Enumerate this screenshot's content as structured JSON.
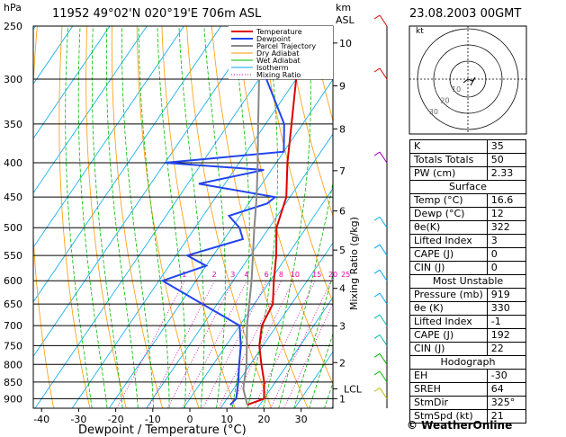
{
  "header": {
    "pressure_unit": "hPa",
    "station": "11952  49°02'N  020°19'E  706m  ASL",
    "height_unit": "km",
    "height_ref": "ASL",
    "datetime": "23.08.2003  00GMT"
  },
  "legend": [
    "Temperature",
    "Dewpoint",
    "Parcel Trajectory",
    "Dry Adiabat",
    "Wet Adiabat",
    "Isotherm",
    "Mixing Ratio"
  ],
  "colors": {
    "temperature": "#dd0000",
    "dewpoint": "#2244ee",
    "parcel": "#888888",
    "dry_adiabat": "#ff9900",
    "wet_adiabat": "#00bb00",
    "isotherm": "#00aaee",
    "mixing_ratio": "#dd00aa"
  },
  "chart_data": {
    "type": "line",
    "title": "11952  49°02'N  020°19'E  706m  ASL",
    "xlabel": "Dewpoint / Temperature (°C)",
    "ylabel": "hPa",
    "xlim": [
      -40,
      38
    ],
    "x_ticks": [
      "-40",
      "-30",
      "-20",
      "-10",
      "0",
      "10",
      "20",
      "30"
    ],
    "pressure_levels": [
      250,
      300,
      350,
      400,
      450,
      500,
      550,
      600,
      650,
      700,
      750,
      800,
      850,
      900
    ],
    "y_tick_labels": [
      "250",
      "300",
      "350",
      "400",
      "450",
      "500",
      "550",
      "600",
      "650",
      "700",
      "750",
      "800",
      "850",
      "900"
    ],
    "height_km_labels": [
      {
        "label": "10",
        "p": 265
      },
      {
        "label": "9",
        "p": 307
      },
      {
        "label": "8",
        "p": 356
      },
      {
        "label": "7",
        "p": 411
      },
      {
        "label": "6",
        "p": 472
      },
      {
        "label": "5",
        "p": 540
      },
      {
        "label": "4",
        "p": 616
      },
      {
        "label": "3",
        "p": 701
      },
      {
        "label": "2",
        "p": 795
      },
      {
        "label": "LCL",
        "p": 870
      },
      {
        "label": "1",
        "p": 900
      }
    ],
    "mixing_ratio_axis_label": "Mixing Ratio (g/kg)",
    "mixing_ratio_labels": [
      "1",
      "2",
      "3",
      "4",
      "6",
      "8",
      "10",
      "15",
      "20",
      "25"
    ],
    "series": [
      {
        "name": "Temperature",
        "points": [
          [
            919,
            16.6
          ],
          [
            900,
            20
          ],
          [
            850,
            17
          ],
          [
            800,
            13
          ],
          [
            750,
            9
          ],
          [
            700,
            6
          ],
          [
            650,
            5
          ],
          [
            600,
            1
          ],
          [
            550,
            -3
          ],
          [
            500,
            -8
          ],
          [
            450,
            -11
          ],
          [
            400,
            -17
          ],
          [
            350,
            -23
          ],
          [
            300,
            -30
          ],
          [
            250,
            -41
          ]
        ]
      },
      {
        "name": "Dewpoint",
        "points": [
          [
            919,
            12
          ],
          [
            900,
            12.5
          ],
          [
            850,
            10
          ],
          [
            800,
            7
          ],
          [
            750,
            4
          ],
          [
            700,
            0
          ],
          [
            650,
            -14
          ],
          [
            600,
            -29
          ],
          [
            570,
            -20
          ],
          [
            550,
            -27
          ],
          [
            520,
            -15
          ],
          [
            500,
            -18
          ],
          [
            480,
            -23
          ],
          [
            460,
            -15
          ],
          [
            450,
            -14
          ],
          [
            430,
            -37
          ],
          [
            410,
            -22
          ],
          [
            400,
            -50
          ],
          [
            385,
            -20
          ],
          [
            350,
            -25
          ],
          [
            300,
            -38
          ],
          [
            265,
            -50
          ],
          [
            250,
            -50
          ]
        ]
      },
      {
        "name": "Parcel Trajectory",
        "points": [
          [
            919,
            16.6
          ],
          [
            870,
            12.6
          ],
          [
            800,
            9
          ],
          [
            700,
            2
          ],
          [
            600,
            -5
          ],
          [
            500,
            -14
          ],
          [
            450,
            -19
          ],
          [
            400,
            -25
          ],
          [
            350,
            -32
          ],
          [
            300,
            -40
          ],
          [
            250,
            -50
          ]
        ]
      }
    ]
  },
  "hodograph": {
    "label": "kt",
    "ring_labels": [
      "10",
      "20",
      "30"
    ]
  },
  "indices": {
    "general": [
      {
        "label": "K",
        "value": "35"
      },
      {
        "label": "Totals Totals",
        "value": "50"
      },
      {
        "label": "PW (cm)",
        "value": "2.33"
      }
    ],
    "surface_title": "Surface",
    "surface": [
      {
        "label": "Temp (°C)",
        "value": "16.6"
      },
      {
        "label": "Dewp (°C)",
        "value": "12"
      },
      {
        "label": "θe(K)",
        "value": "322"
      },
      {
        "label": "Lifted Index",
        "value": "3"
      },
      {
        "label": "CAPE (J)",
        "value": "0"
      },
      {
        "label": "CIN (J)",
        "value": "0"
      }
    ],
    "unstable_title": "Most Unstable",
    "unstable": [
      {
        "label": "Pressure (mb)",
        "value": "919"
      },
      {
        "label": "θe (K)",
        "value": "330"
      },
      {
        "label": "Lifted Index",
        "value": "-1"
      },
      {
        "label": "CAPE (J)",
        "value": "192"
      },
      {
        "label": "CIN (J)",
        "value": "22"
      }
    ],
    "hodograph_title": "Hodograph",
    "hodograph": [
      {
        "label": "EH",
        "value": "-30"
      },
      {
        "label": "SREH",
        "value": "64"
      },
      {
        "label": "StmDir",
        "value": "325°"
      },
      {
        "label": "StmSpd (kt)",
        "value": "21"
      }
    ]
  },
  "copyright": "© WeatherOnline"
}
